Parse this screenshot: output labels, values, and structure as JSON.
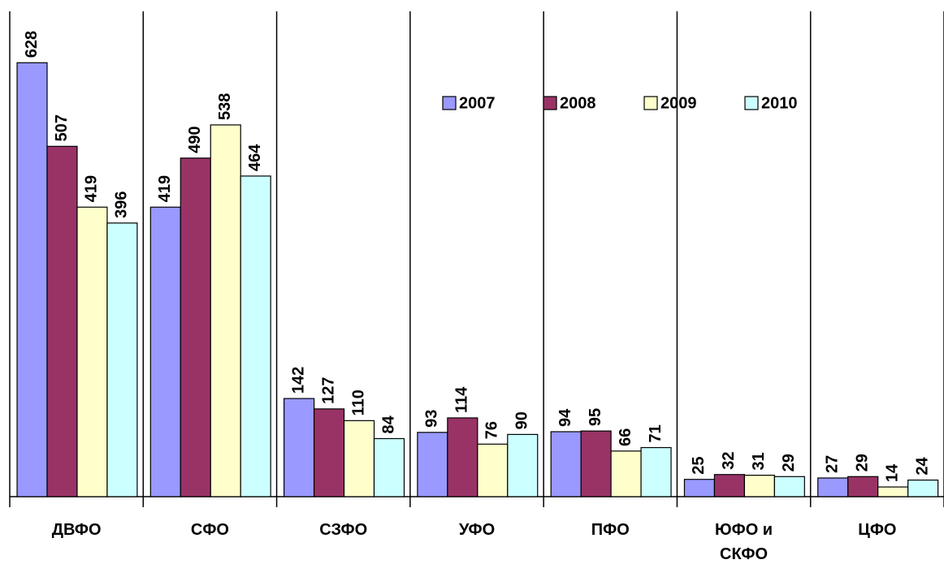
{
  "chart_data": {
    "type": "bar",
    "categories": [
      "ДВФО",
      "СФО",
      "СЗФО",
      "УФО",
      "ПФО",
      "ЮФО и СКФО",
      "ЦФО"
    ],
    "series": [
      {
        "name": "2007",
        "color": "#9999ff",
        "values": [
          628,
          419,
          142,
          93,
          94,
          25,
          27
        ]
      },
      {
        "name": "2008",
        "color": "#993366",
        "values": [
          507,
          490,
          127,
          114,
          95,
          32,
          29
        ]
      },
      {
        "name": "2009",
        "color": "#ffffcc",
        "values": [
          419,
          538,
          110,
          76,
          66,
          31,
          14
        ]
      },
      {
        "name": "2010",
        "color": "#ccffff",
        "values": [
          396,
          464,
          84,
          90,
          71,
          29,
          24
        ]
      }
    ],
    "ylim": [
      0,
      700
    ],
    "legend": "top-right"
  }
}
